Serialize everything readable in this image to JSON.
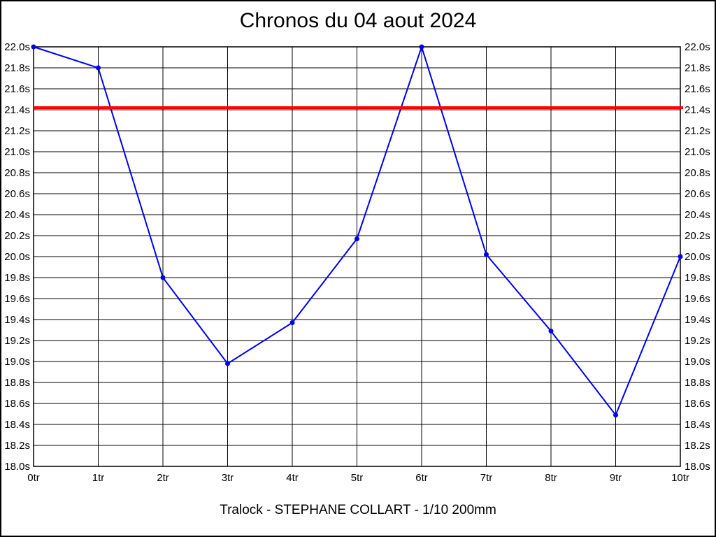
{
  "chart_data": {
    "type": "line",
    "title": "Chronos du 04 aout 2024",
    "caption": "Tralock - STEPHANE COLLART - 1/10 200mm",
    "x_tick_labels": [
      "0tr",
      "1tr",
      "2tr",
      "3tr",
      "4tr",
      "5tr",
      "6tr",
      "7tr",
      "8tr",
      "9tr",
      "10tr"
    ],
    "y_tick_labels": [
      "22.0s",
      "21.8s",
      "21.6s",
      "21.4s",
      "21.2s",
      "21.0s",
      "20.8s",
      "20.6s",
      "20.4s",
      "20.2s",
      "20.0s",
      "19.8s",
      "19.6s",
      "19.4s",
      "19.2s",
      "19.0s",
      "18.8s",
      "18.6s",
      "18.4s",
      "18.2s",
      "18.0s"
    ],
    "ylim": [
      18.0,
      22.0
    ],
    "y_tick_step": 0.2,
    "grid": true,
    "legend_position": "none",
    "series": [
      {
        "name": "lap_times",
        "color": "#0000f0",
        "marker": "circle",
        "x": [
          0,
          1,
          2,
          3,
          4,
          5,
          6,
          7,
          8,
          9,
          10
        ],
        "values": [
          22.0,
          21.8,
          19.8,
          18.98,
          19.37,
          20.17,
          22.0,
          20.02,
          19.29,
          18.49,
          20.0
        ]
      }
    ],
    "reference_line": {
      "value": 21.42,
      "color": "#ff0000"
    },
    "axis_color": "#000000",
    "background_color": "#ffffff"
  }
}
